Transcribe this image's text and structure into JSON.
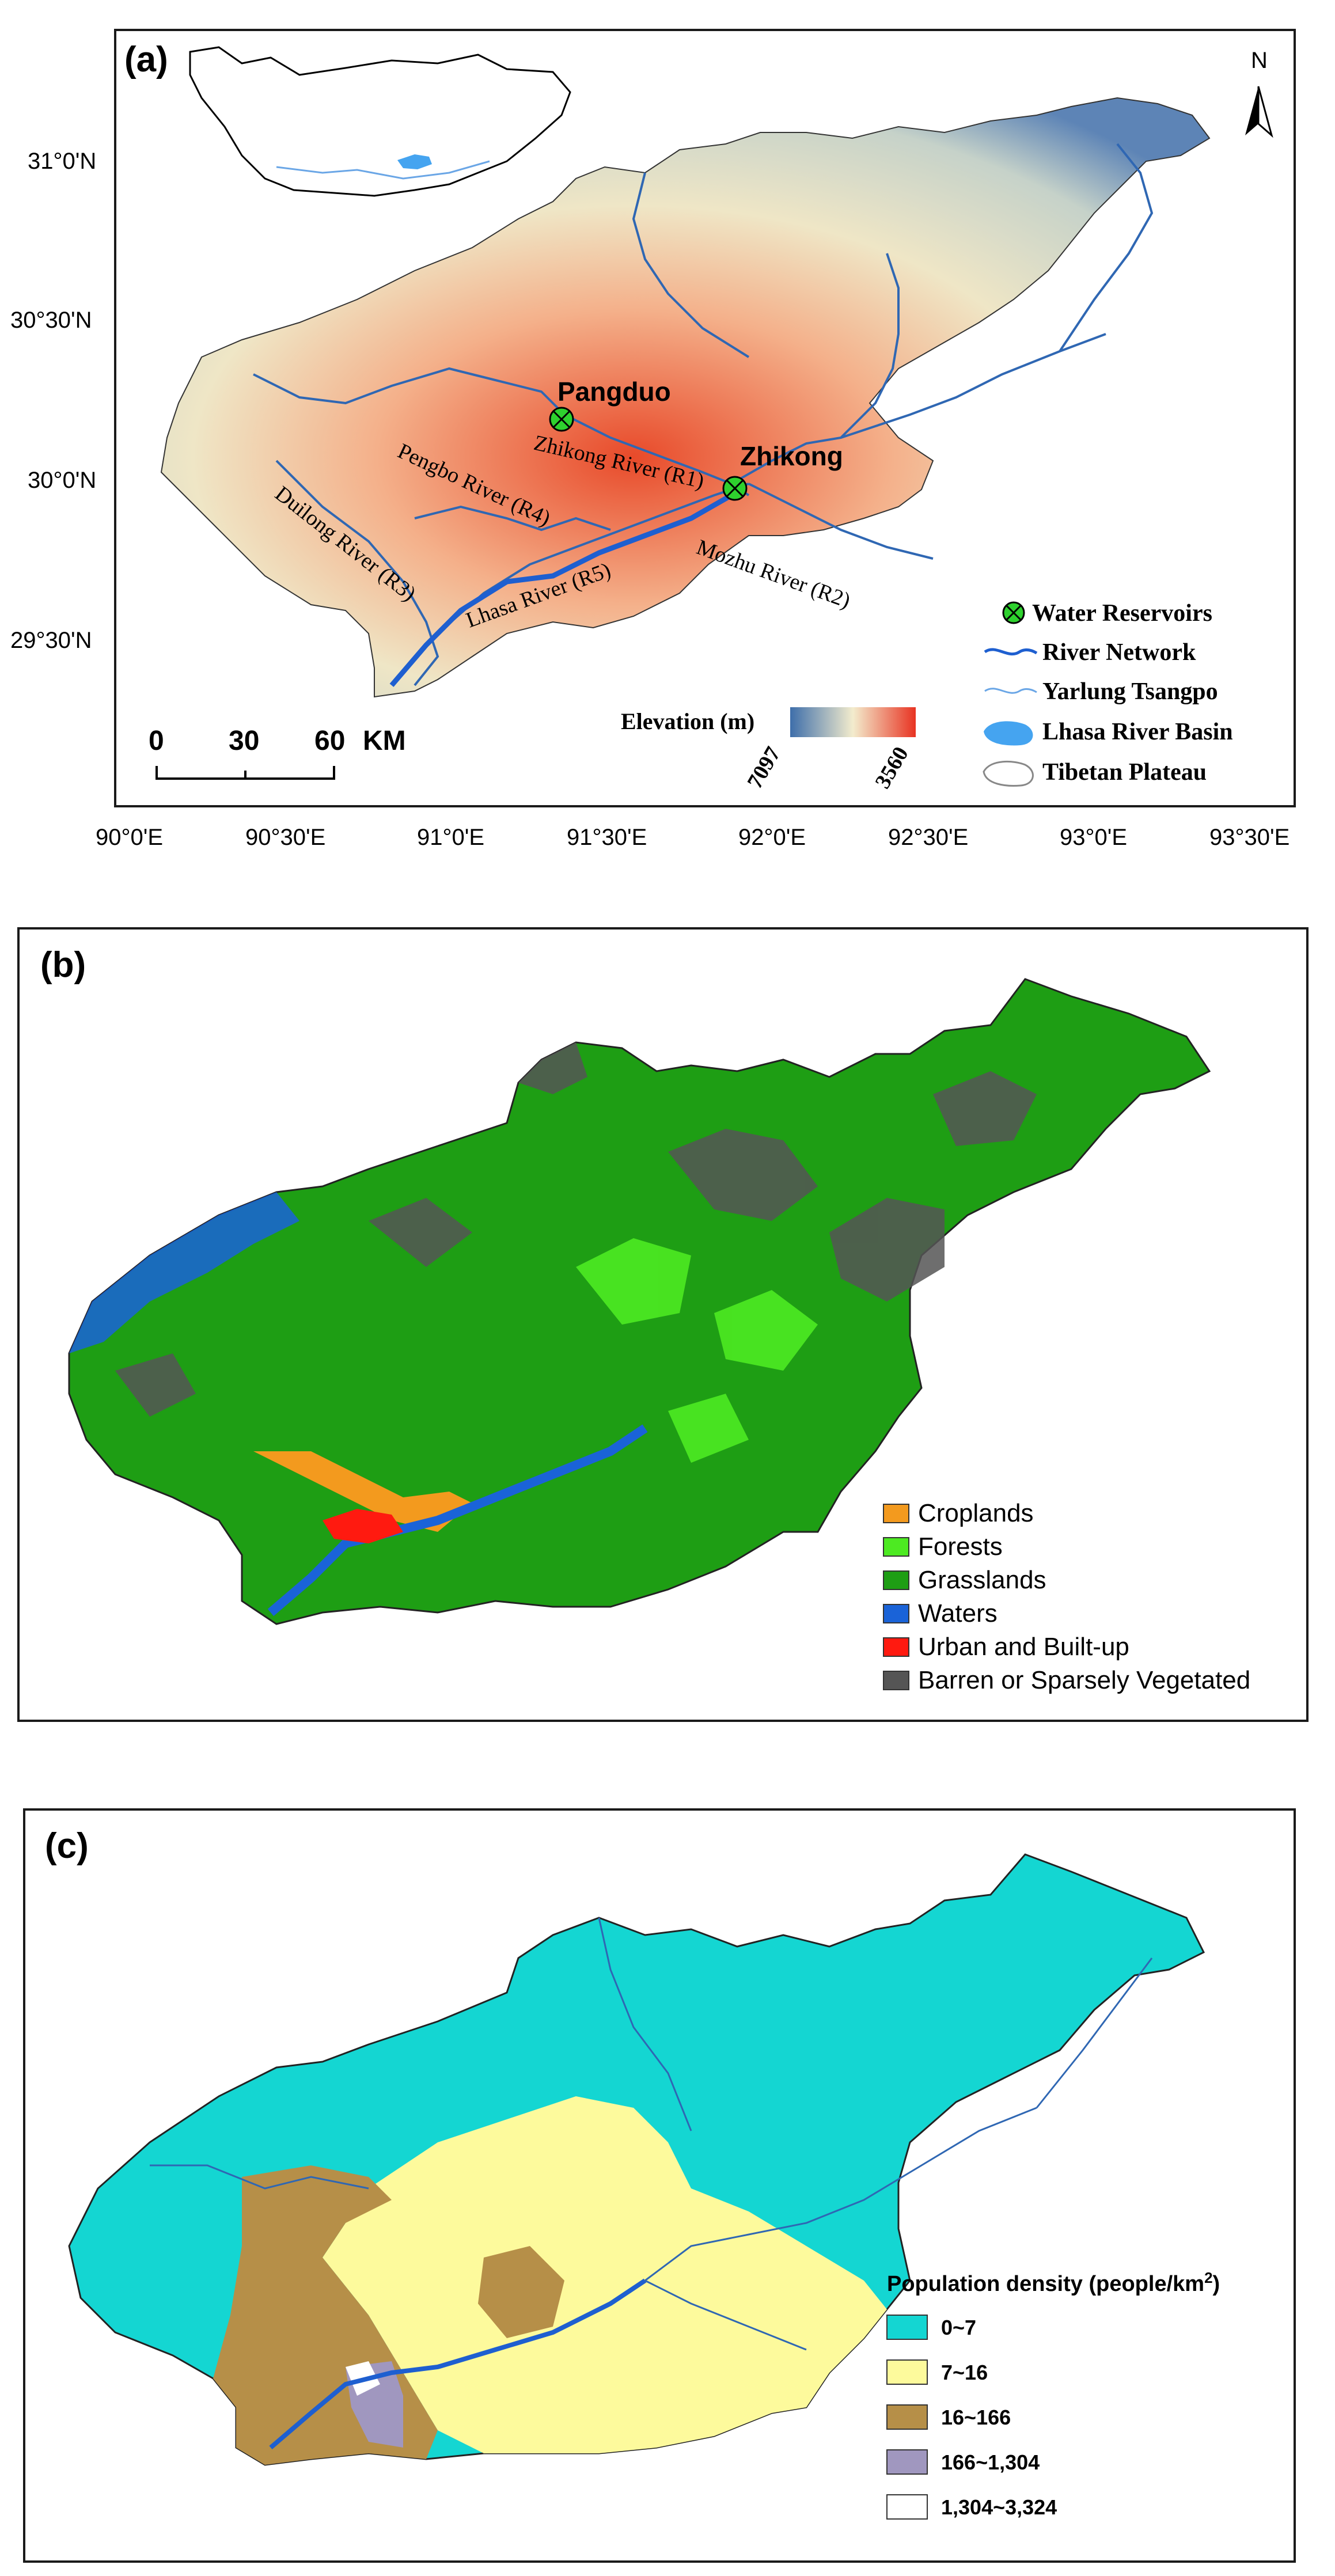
{
  "panel_a": {
    "label": "(a)",
    "lat_ticks": [
      "31°0'N",
      "30°30'N",
      "30°0'N",
      "29°30'N"
    ],
    "lon_ticks": [
      "90°0'E",
      "90°30'E",
      "91°0'E",
      "91°30'E",
      "92°0'E",
      "92°30'E",
      "93°0'E",
      "93°30'E"
    ],
    "north": "N",
    "reservoirs": [
      "Pangduo",
      "Zhikong"
    ],
    "rivers": [
      "Zhikong River (R1)",
      "Pengbo River (R4)",
      "Duilong River (R3)",
      "Lhasa River (R5)",
      "Mozhu River (R2)"
    ],
    "scale": {
      "labels": [
        "0",
        "30",
        "60"
      ],
      "unit": "KM"
    },
    "elevation": {
      "title": "Elevation (m)",
      "low": "7097",
      "high": "3560",
      "colors": [
        "#3e6eaa",
        "#f3eccd",
        "#e83322"
      ]
    },
    "legend": [
      "Water Reservoirs",
      "River Network",
      "Yarlung Tsangpo",
      "Lhasa River Basin",
      "Tibetan Plateau"
    ]
  },
  "panel_b": {
    "label": "(b)",
    "legend": [
      {
        "label": "Croplands",
        "color": "#f39a1e"
      },
      {
        "label": "Forests",
        "color": "#4dea22"
      },
      {
        "label": "Grasslands",
        "color": "#1e9e14"
      },
      {
        "label": "Waters",
        "color": "#1a63d8"
      },
      {
        "label": "Urban and Built-up",
        "color": "#ff1a10"
      },
      {
        "label": "Barren or Sparsely Vegetated",
        "color": "#555555"
      }
    ]
  },
  "panel_c": {
    "label": "(c)",
    "legend_title": "Population density (people/km",
    "legend_title_sup": "2",
    "legend_title_end": ")",
    "legend": [
      {
        "label": "0~7",
        "color": "#14d6d2"
      },
      {
        "label": "7~16",
        "color": "#fdfa9c"
      },
      {
        "label": "16~166",
        "color": "#b68f48"
      },
      {
        "label": "166~1,304",
        "color": "#a097bf"
      },
      {
        "label": "1,304~3,324",
        "color": "#ffffff"
      }
    ]
  }
}
